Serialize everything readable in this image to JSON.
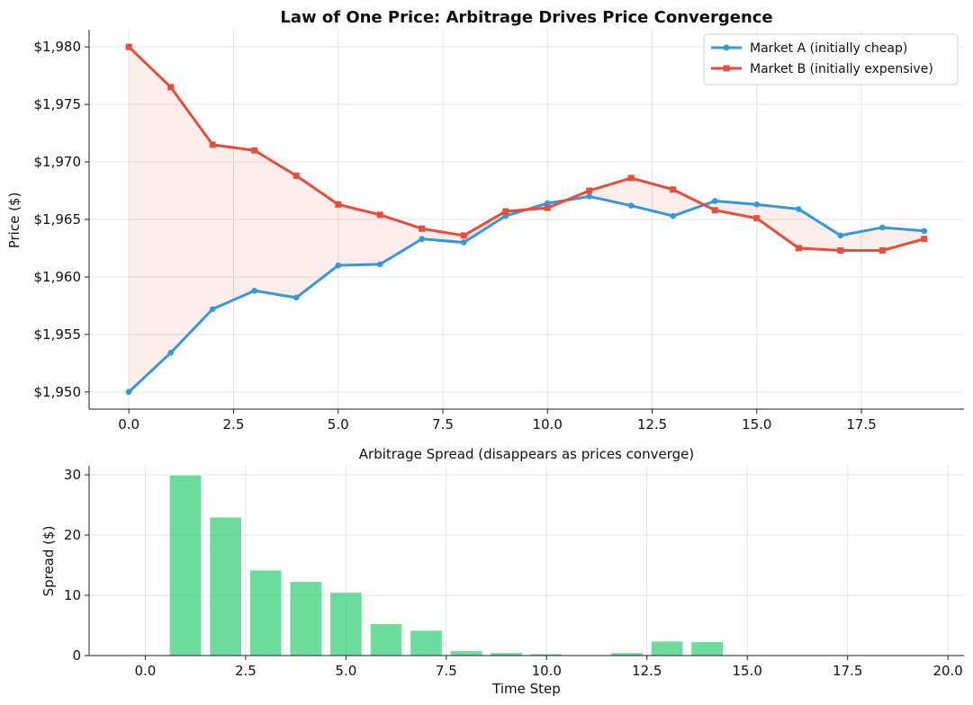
{
  "chart_data": [
    {
      "type": "line",
      "title": "Law of One Price: Arbitrage Drives Price Convergence",
      "xlabel": "",
      "ylabel": "Price ($)",
      "xlim": [
        -0.95,
        19.95
      ],
      "ylim": [
        1948.5,
        1981.5
      ],
      "xticks": [
        0.0,
        2.5,
        5.0,
        7.5,
        10.0,
        12.5,
        15.0,
        17.5
      ],
      "xtick_labels": [
        "0.0",
        "2.5",
        "5.0",
        "7.5",
        "10.0",
        "12.5",
        "15.0",
        "17.5"
      ],
      "yticks": [
        1950,
        1955,
        1960,
        1965,
        1970,
        1975,
        1980
      ],
      "ytick_labels": [
        "$1,950",
        "$1,955",
        "$1,960",
        "$1,965",
        "$1,970",
        "$1,975",
        "$1,980"
      ],
      "grid": true,
      "legend_position": "top-right",
      "fill_between": {
        "color": "#e74c3c",
        "opacity": 0.1
      },
      "x": [
        0,
        1,
        2,
        3,
        4,
        5,
        6,
        7,
        8,
        9,
        10,
        11,
        12,
        13,
        14,
        15,
        16,
        17,
        18,
        19
      ],
      "series": [
        {
          "name": "Market A (initially cheap)",
          "color": "#3498db",
          "marker": "circle",
          "values": [
            1950.0,
            1953.4,
            1957.2,
            1958.8,
            1958.2,
            1961.0,
            1961.1,
            1963.3,
            1963.0,
            1965.3,
            1966.4,
            1967.0,
            1966.2,
            1965.3,
            1966.6,
            1966.3,
            1965.9,
            1963.6,
            1964.3,
            1964.0
          ]
        },
        {
          "name": "Market B (initially expensive)",
          "color": "#e74c3c",
          "marker": "square",
          "values": [
            1980.0,
            1976.5,
            1971.5,
            1971.0,
            1968.8,
            1966.3,
            1965.4,
            1964.2,
            1963.6,
            1965.7,
            1966.0,
            1967.5,
            1968.6,
            1967.6,
            1965.8,
            1965.1,
            1962.5,
            1962.3,
            1962.3,
            1963.3
          ]
        }
      ]
    },
    {
      "type": "bar",
      "title": "Arbitrage Spread (disappears as prices converge)",
      "xlabel": "Time Step",
      "ylabel": "Spread ($)",
      "xlim": [
        -1.4,
        20.4
      ],
      "ylim": [
        0,
        31.5
      ],
      "xticks": [
        0.0,
        2.5,
        5.0,
        7.5,
        10.0,
        12.5,
        15.0,
        17.5,
        20.0
      ],
      "xtick_labels": [
        "0.0",
        "2.5",
        "5.0",
        "7.5",
        "10.0",
        "12.5",
        "15.0",
        "17.5",
        "20.0"
      ],
      "yticks": [
        0,
        10,
        20,
        30
      ],
      "ytick_labels": [
        "0",
        "10",
        "20",
        "30"
      ],
      "grid": true,
      "bar_color": "#2ecc71",
      "bar_opacity": 0.7,
      "bar_width": 0.8,
      "x": [
        1,
        2,
        3,
        4,
        5,
        6,
        7,
        8,
        9,
        10,
        11,
        12,
        13,
        14,
        15,
        16,
        17,
        18,
        19
      ],
      "values": [
        30.0,
        23.0,
        14.2,
        12.3,
        10.5,
        5.3,
        4.2,
        0.8,
        0.5,
        0.3,
        0.0,
        0.5,
        2.4,
        2.3,
        0.0,
        0.0,
        0.0,
        0.0,
        0.0
      ]
    }
  ]
}
